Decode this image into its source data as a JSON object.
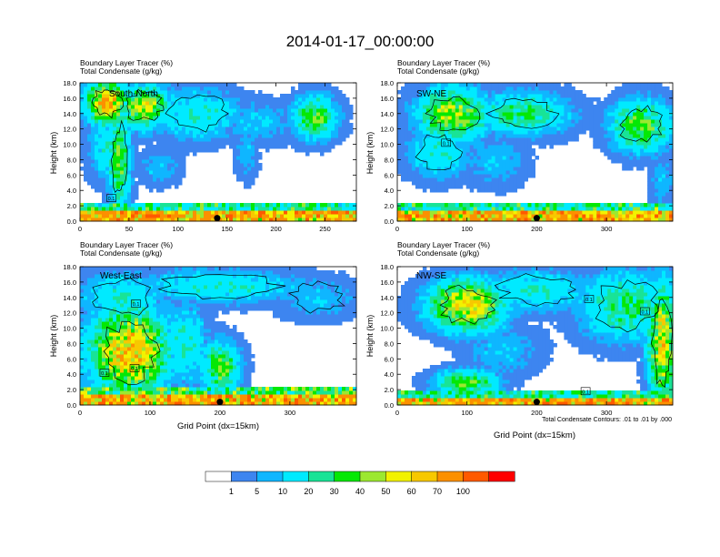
{
  "title": "2014-01-17_00:00:00",
  "chart_data": [
    {
      "type": "heatmap",
      "panel_label": "South-North",
      "header_line1": "Boundary Layer Tracer   (%)",
      "header_line2": "Total Condensate   (g/kg)",
      "ylabel": "Height (km)",
      "xlabel": "",
      "xlim": [
        0,
        282
      ],
      "ylim": [
        0,
        18
      ],
      "xticks": [
        0,
        50,
        100,
        150,
        200,
        250
      ],
      "yticks": [
        0.0,
        2.0,
        4.0,
        6.0,
        8.0,
        10.0,
        12.0,
        14.0,
        16.0,
        18.0
      ],
      "ytick_labels": [
        "0.0",
        "2.0",
        "4.0",
        "6.0",
        "8.0",
        "10.0",
        "12.0",
        "14.0",
        "16.0",
        "18.0"
      ],
      "marker_x": 140,
      "contour_labels": [
        {
          "text": "0.1",
          "x": 32,
          "y": 3.0
        }
      ],
      "clusters": [
        {
          "x": 28,
          "y": 15.5,
          "rx": 20,
          "ry": 2.5,
          "v": 70
        },
        {
          "x": 65,
          "y": 15,
          "rx": 25,
          "ry": 2.5,
          "v": 50
        },
        {
          "x": 40,
          "y": 8,
          "rx": 10,
          "ry": 6,
          "v": 40
        },
        {
          "x": 120,
          "y": 14,
          "rx": 40,
          "ry": 3,
          "v": 20
        },
        {
          "x": 180,
          "y": 13,
          "rx": 40,
          "ry": 2.5,
          "v": 10
        },
        {
          "x": 240,
          "y": 13.5,
          "rx": 20,
          "ry": 2.5,
          "v": 40
        },
        {
          "x": 30,
          "y": 10,
          "rx": 18,
          "ry": 4,
          "v": 20
        },
        {
          "x": 170,
          "y": 9,
          "rx": 10,
          "ry": 3,
          "v": 10
        },
        {
          "x": 80,
          "y": 7,
          "rx": 20,
          "ry": 2,
          "v": 10
        }
      ],
      "low_level": {
        "base": 100,
        "depth_km": 1.5,
        "mid": 40,
        "mid_depth_km": 2.5
      }
    },
    {
      "type": "heatmap",
      "panel_label": "SW-NE",
      "header_line1": "Boundary Layer Tracer   (%)",
      "header_line2": "Total Condensate   (g/kg)",
      "ylabel": "Height (km)",
      "xlabel": "",
      "xlim": [
        0,
        395
      ],
      "ylim": [
        0,
        18
      ],
      "xticks": [
        0,
        100,
        200,
        300
      ],
      "yticks": [
        0.0,
        2.0,
        4.0,
        6.0,
        8.0,
        10.0,
        12.0,
        14.0,
        16.0,
        18.0
      ],
      "ytick_labels": [
        "0.0",
        "2.0",
        "4.0",
        "6.0",
        "8.0",
        "10.0",
        "12.0",
        "14.0",
        "16.0",
        "18.0"
      ],
      "marker_x": 200,
      "contour_labels": [
        {
          "text": "0.1",
          "x": 70,
          "y": 10.2
        }
      ],
      "clusters": [
        {
          "x": 80,
          "y": 14,
          "rx": 45,
          "ry": 3,
          "v": 50
        },
        {
          "x": 180,
          "y": 14,
          "rx": 60,
          "ry": 2.5,
          "v": 30
        },
        {
          "x": 350,
          "y": 12.5,
          "rx": 40,
          "ry": 3,
          "v": 40
        },
        {
          "x": 60,
          "y": 9,
          "rx": 40,
          "ry": 3,
          "v": 20
        },
        {
          "x": 140,
          "y": 8,
          "rx": 40,
          "ry": 3,
          "v": 10
        },
        {
          "x": 380,
          "y": 5,
          "rx": 15,
          "ry": 3,
          "v": 10
        }
      ],
      "low_level": {
        "base": 100,
        "depth_km": 1.3,
        "mid": 40,
        "mid_depth_km": 2.2
      }
    },
    {
      "type": "heatmap",
      "panel_label": "West-East",
      "header_line1": "Boundary Layer Tracer   (%)",
      "header_line2": "Total Condensate   (g/kg)",
      "ylabel": "Height (km)",
      "xlabel": "Grid Point (dx=15km)",
      "xlim": [
        0,
        395
      ],
      "ylim": [
        0,
        18
      ],
      "xticks": [
        0,
        100,
        200,
        300
      ],
      "yticks": [
        0.0,
        2.0,
        4.0,
        6.0,
        8.0,
        10.0,
        12.0,
        14.0,
        16.0,
        18.0
      ],
      "ytick_labels": [
        "0.0",
        "2.0",
        "4.0",
        "6.0",
        "8.0",
        "10.0",
        "12.0",
        "14.0",
        "16.0",
        "18.0"
      ],
      "marker_x": 200,
      "contour_labels": [
        {
          "text": "0.1",
          "x": 80,
          "y": 13.2
        },
        {
          "text": "0.1",
          "x": 78,
          "y": 4.8
        },
        {
          "text": "0.1",
          "x": 35,
          "y": 4.2
        }
      ],
      "clusters": [
        {
          "x": 70,
          "y": 7,
          "rx": 50,
          "ry": 5,
          "v": 70
        },
        {
          "x": 60,
          "y": 14,
          "rx": 55,
          "ry": 3,
          "v": 20
        },
        {
          "x": 200,
          "y": 15.5,
          "rx": 110,
          "ry": 2,
          "v": 20
        },
        {
          "x": 340,
          "y": 14,
          "rx": 50,
          "ry": 2.5,
          "v": 10
        },
        {
          "x": 150,
          "y": 8,
          "rx": 30,
          "ry": 5,
          "v": 20
        },
        {
          "x": 200,
          "y": 5,
          "rx": 25,
          "ry": 3,
          "v": 40
        }
      ],
      "low_level": {
        "base": 100,
        "depth_km": 1.2,
        "mid": 50,
        "mid_depth_km": 2.5
      }
    },
    {
      "type": "heatmap",
      "panel_label": "NW-SE",
      "header_line1": "Boundary Layer Tracer   (%)",
      "header_line2": "Total Condensate   (g/kg)",
      "ylabel": "Height (km)",
      "xlabel": "Grid Point (dx=15km)",
      "xlim": [
        0,
        395
      ],
      "ylim": [
        0,
        18
      ],
      "xticks": [
        0,
        100,
        200,
        300
      ],
      "yticks": [
        0.0,
        2.0,
        4.0,
        6.0,
        8.0,
        10.0,
        12.0,
        14.0,
        16.0,
        18.0
      ],
      "ytick_labels": [
        "0.0",
        "2.0",
        "4.0",
        "6.0",
        "8.0",
        "10.0",
        "12.0",
        "14.0",
        "16.0",
        "18.0"
      ],
      "marker_x": 200,
      "contour_labels": [
        {
          "text": "0.1",
          "x": 275,
          "y": 13.8
        },
        {
          "text": "0.1",
          "x": 355,
          "y": 12.2
        },
        {
          "text": "0.1",
          "x": 270,
          "y": 1.8
        }
      ],
      "clusters": [
        {
          "x": 100,
          "y": 13,
          "rx": 50,
          "ry": 3,
          "v": 60
        },
        {
          "x": 200,
          "y": 15,
          "rx": 70,
          "ry": 2.5,
          "v": 20
        },
        {
          "x": 330,
          "y": 13,
          "rx": 60,
          "ry": 4,
          "v": 30
        },
        {
          "x": 380,
          "y": 8,
          "rx": 18,
          "ry": 7,
          "v": 60
        },
        {
          "x": 150,
          "y": 7,
          "rx": 50,
          "ry": 3,
          "v": 10
        },
        {
          "x": 100,
          "y": 3,
          "rx": 40,
          "ry": 1.5,
          "v": 40
        }
      ],
      "low_level": {
        "base": 100,
        "depth_km": 1.0,
        "mid": 40,
        "mid_depth_km": 2.0
      }
    }
  ],
  "colorbar": {
    "labels": [
      "1",
      "5",
      "10",
      "20",
      "30",
      "40",
      "50",
      "60",
      "70",
      "100"
    ],
    "colors": [
      "#ffffff",
      "#3d85f0",
      "#0fb6ff",
      "#00eaff",
      "#19e396",
      "#05e805",
      "#9ce830",
      "#f2f200",
      "#f7c800",
      "#fc9000",
      "#ff5a00",
      "#ff0000"
    ]
  },
  "footnote": "Total Condensate Contours: .01 to .01 by .000"
}
